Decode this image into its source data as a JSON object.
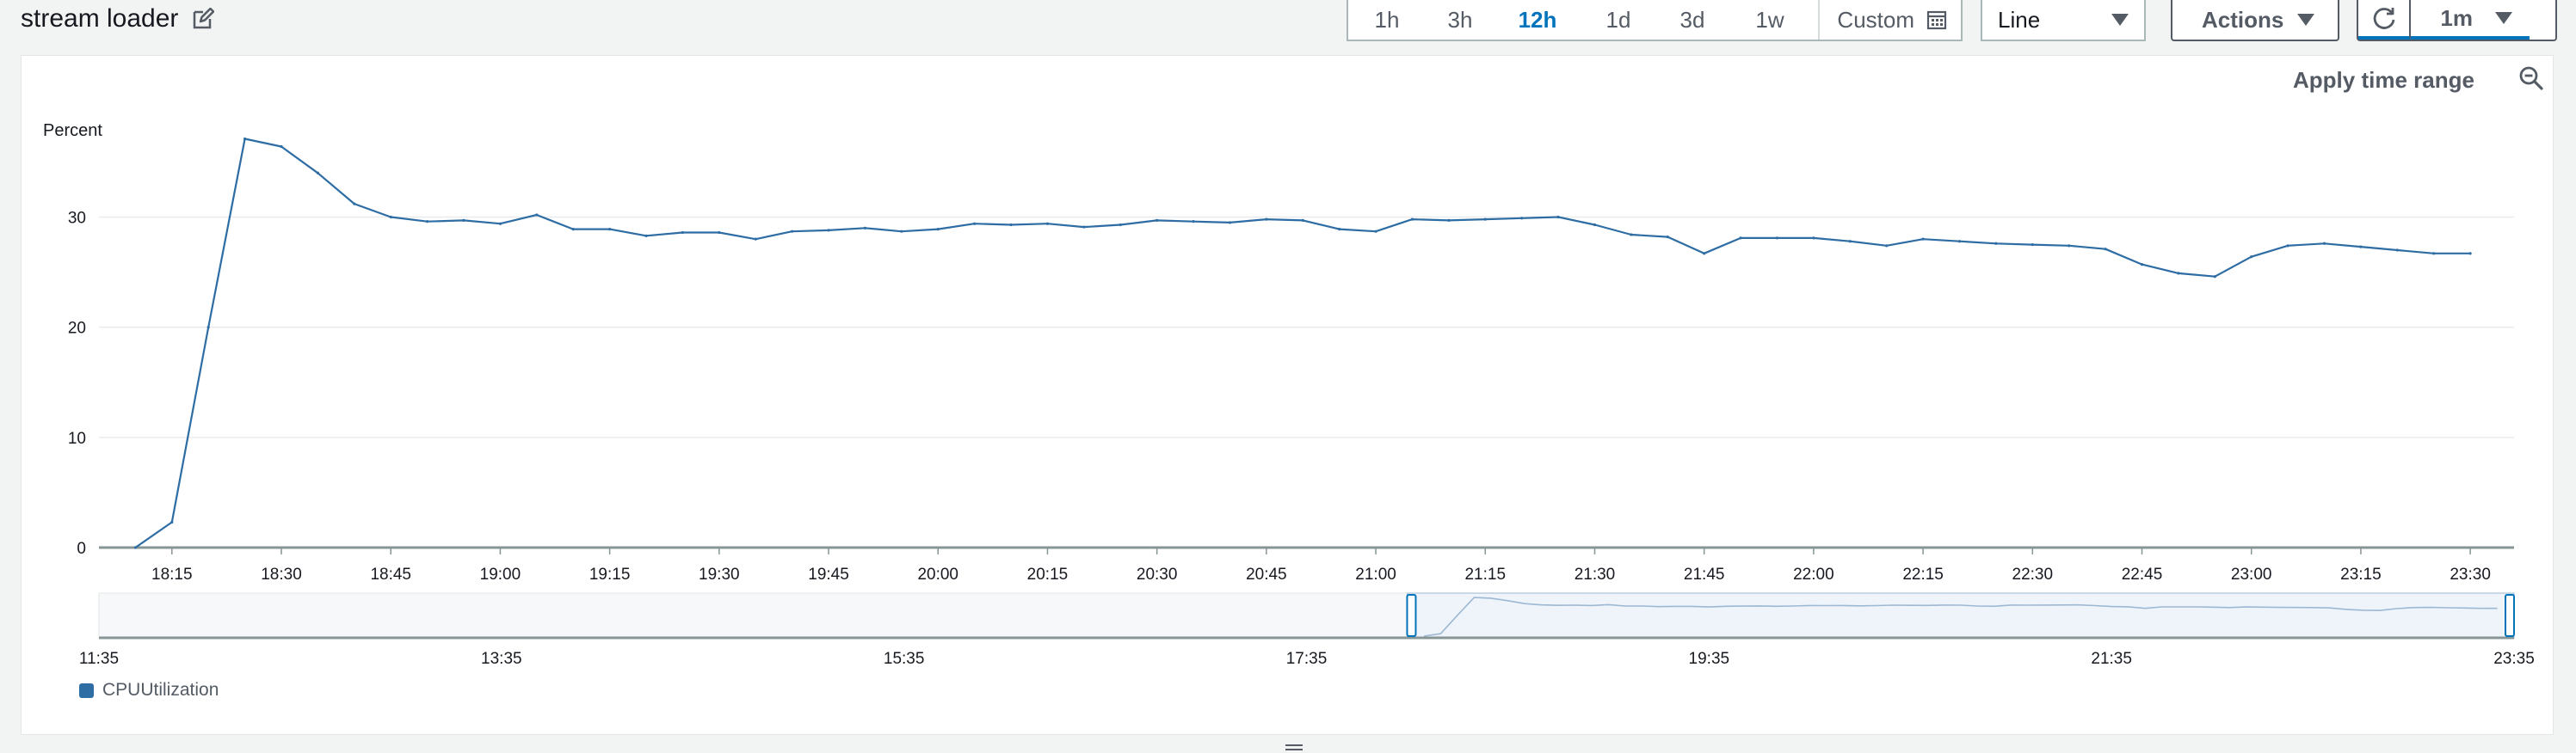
{
  "header": {
    "title": "stream loader"
  },
  "time_range": {
    "options": [
      "1h",
      "3h",
      "12h",
      "1d",
      "3d",
      "1w"
    ],
    "active": "12h",
    "custom_label": "Custom"
  },
  "chart_type_select": {
    "value": "Line"
  },
  "actions": {
    "label": "Actions"
  },
  "refresh": {
    "interval_label": "1m"
  },
  "panel": {
    "apply_time_range_label": "Apply time range"
  },
  "colors": {
    "accent": "#0073bb",
    "series": "#2e6da4",
    "grid": "#e9ebed",
    "axis": "#879596"
  },
  "chart_data": {
    "type": "line",
    "ylabel": "Percent",
    "yticks": [
      0,
      10,
      20,
      30
    ],
    "ylim": [
      0,
      38
    ],
    "x_tick_labels": [
      "18:15",
      "18:30",
      "18:45",
      "19:00",
      "19:15",
      "19:30",
      "19:45",
      "20:00",
      "20:15",
      "20:30",
      "20:45",
      "21:00",
      "21:15",
      "21:30",
      "21:45",
      "22:00",
      "22:15",
      "22:30",
      "22:45",
      "23:00",
      "23:15",
      "23:30"
    ],
    "xlim": [
      "18:05",
      "23:36"
    ],
    "series": [
      {
        "name": "CPUUtilization",
        "color": "#2e6da4",
        "points": [
          [
            "18:10",
            0.0
          ],
          [
            "18:15",
            2.3
          ],
          [
            "18:20",
            20.0
          ],
          [
            "18:25",
            37.1
          ],
          [
            "18:30",
            36.4
          ],
          [
            "18:35",
            34.0
          ],
          [
            "18:40",
            31.2
          ],
          [
            "18:45",
            30.0
          ],
          [
            "18:50",
            29.6
          ],
          [
            "18:55",
            29.7
          ],
          [
            "19:00",
            29.4
          ],
          [
            "19:05",
            30.2
          ],
          [
            "19:10",
            28.9
          ],
          [
            "19:15",
            28.9
          ],
          [
            "19:20",
            28.3
          ],
          [
            "19:25",
            28.6
          ],
          [
            "19:30",
            28.6
          ],
          [
            "19:35",
            28.0
          ],
          [
            "19:40",
            28.7
          ],
          [
            "19:45",
            28.8
          ],
          [
            "19:50",
            29.0
          ],
          [
            "19:55",
            28.7
          ],
          [
            "20:00",
            28.9
          ],
          [
            "20:05",
            29.4
          ],
          [
            "20:10",
            29.3
          ],
          [
            "20:15",
            29.4
          ],
          [
            "20:20",
            29.1
          ],
          [
            "20:25",
            29.3
          ],
          [
            "20:30",
            29.7
          ],
          [
            "20:35",
            29.6
          ],
          [
            "20:40",
            29.5
          ],
          [
            "20:45",
            29.8
          ],
          [
            "20:50",
            29.7
          ],
          [
            "20:55",
            28.9
          ],
          [
            "21:00",
            28.7
          ],
          [
            "21:05",
            29.8
          ],
          [
            "21:10",
            29.7
          ],
          [
            "21:15",
            29.8
          ],
          [
            "21:20",
            29.9
          ],
          [
            "21:25",
            30.0
          ],
          [
            "21:30",
            29.3
          ],
          [
            "21:35",
            28.4
          ],
          [
            "21:40",
            28.2
          ],
          [
            "21:45",
            26.7
          ],
          [
            "21:50",
            28.1
          ],
          [
            "21:55",
            28.1
          ],
          [
            "22:00",
            28.1
          ],
          [
            "22:05",
            27.8
          ],
          [
            "22:10",
            27.4
          ],
          [
            "22:15",
            28.0
          ],
          [
            "22:20",
            27.8
          ],
          [
            "22:25",
            27.6
          ],
          [
            "22:30",
            27.5
          ],
          [
            "22:35",
            27.4
          ],
          [
            "22:40",
            27.1
          ],
          [
            "22:45",
            25.7
          ],
          [
            "22:50",
            24.9
          ],
          [
            "22:55",
            24.6
          ],
          [
            "23:00",
            26.4
          ],
          [
            "23:05",
            27.4
          ],
          [
            "23:10",
            27.6
          ],
          [
            "23:15",
            27.3
          ],
          [
            "23:20",
            27.0
          ],
          [
            "23:25",
            26.7
          ],
          [
            "23:30",
            26.7
          ]
        ]
      }
    ],
    "overview": {
      "tick_labels": [
        "11:35",
        "13:35",
        "15:35",
        "17:35",
        "19:35",
        "21:35",
        "23:35"
      ],
      "range": [
        "11:35",
        "23:35"
      ],
      "selected_range": [
        "18:05",
        "23:35"
      ]
    },
    "legend": [
      "CPUUtilization"
    ],
    "grid": true
  }
}
